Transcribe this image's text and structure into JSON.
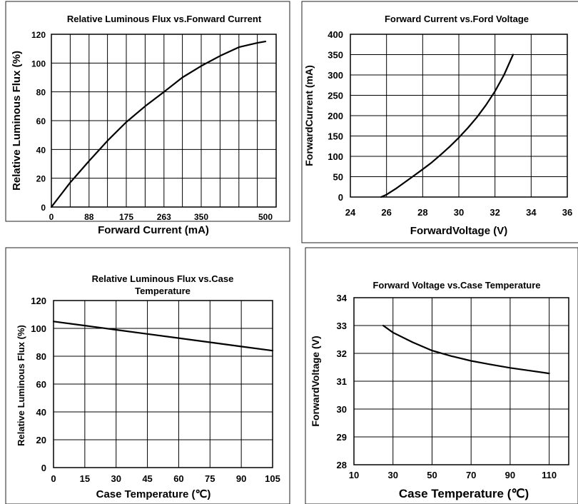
{
  "chart_data": [
    {
      "type": "line",
      "title": "Relative Luminous Flux vs.Fonward Current",
      "xlabel": "Forward Current (mA)",
      "ylabel": "Relative Luminous Flux (%)",
      "x_ticks": [
        "0",
        "88",
        "175",
        "263",
        "350",
        "500"
      ],
      "y_ticks": [
        "0",
        "20",
        "40",
        "60",
        "80",
        "100",
        "120"
      ],
      "xlim": [
        0,
        525
      ],
      "ylim": [
        0,
        120
      ],
      "grid": true,
      "series": [
        {
          "x": [
            0,
            44,
            88,
            131,
            175,
            219,
            263,
            306,
            350,
            394,
            438,
            481,
            500
          ],
          "y": [
            0,
            17,
            32,
            46,
            59,
            70,
            80,
            90,
            98,
            105,
            111,
            114,
            115
          ]
        }
      ]
    },
    {
      "type": "line",
      "title": "Forward Current vs.Ford Voltage",
      "xlabel": "ForwardVoltage (V)",
      "ylabel": "ForwardCurrent (mA)",
      "x_ticks": [
        "24",
        "26",
        "28",
        "30",
        "32",
        "34",
        "36"
      ],
      "y_ticks": [
        "0",
        "50",
        "100",
        "150",
        "200",
        "250",
        "300",
        "350",
        "400"
      ],
      "xlim": [
        24,
        36
      ],
      "ylim": [
        0,
        400
      ],
      "grid": true,
      "series": [
        {
          "x": [
            25.7,
            26.0,
            26.5,
            27.0,
            27.5,
            28.0,
            28.5,
            29.0,
            29.5,
            30.0,
            30.5,
            31.0,
            31.5,
            32.0,
            32.5,
            33.0
          ],
          "y": [
            0,
            6,
            20,
            36,
            52,
            68,
            85,
            104,
            124,
            146,
            170,
            196,
            226,
            260,
            300,
            350
          ]
        }
      ]
    },
    {
      "type": "line",
      "title": "Relative Luminous Flux vs.Case Temperature",
      "xlabel": "Case Temperature (℃)",
      "ylabel": "Relative Luminous Flux (%)",
      "x_ticks": [
        "0",
        "15",
        "30",
        "45",
        "60",
        "75",
        "90",
        "105"
      ],
      "y_ticks": [
        "0",
        "20",
        "40",
        "60",
        "80",
        "100",
        "120"
      ],
      "xlim": [
        0,
        105
      ],
      "ylim": [
        0,
        120
      ],
      "grid": true,
      "series": [
        {
          "x": [
            0,
            15,
            30,
            45,
            60,
            75,
            90,
            105
          ],
          "y": [
            105,
            102,
            99,
            96,
            93,
            90,
            87,
            84
          ]
        }
      ]
    },
    {
      "type": "line",
      "title": "Forward Voltage vs.Case Temperature",
      "xlabel": "Case Temperature (℃)",
      "ylabel": "ForwardVoltage (V)",
      "x_ticks": [
        "10",
        "30",
        "50",
        "70",
        "90",
        "110"
      ],
      "y_ticks": [
        "28",
        "29",
        "30",
        "31",
        "32",
        "33",
        "34"
      ],
      "xlim": [
        10,
        120
      ],
      "ylim": [
        28,
        34
      ],
      "grid": true,
      "series": [
        {
          "x": [
            25,
            30,
            40,
            50,
            60,
            70,
            80,
            90,
            100,
            110
          ],
          "y": [
            33.0,
            32.75,
            32.4,
            32.1,
            31.9,
            31.73,
            31.6,
            31.48,
            31.38,
            31.28
          ]
        }
      ]
    }
  ]
}
